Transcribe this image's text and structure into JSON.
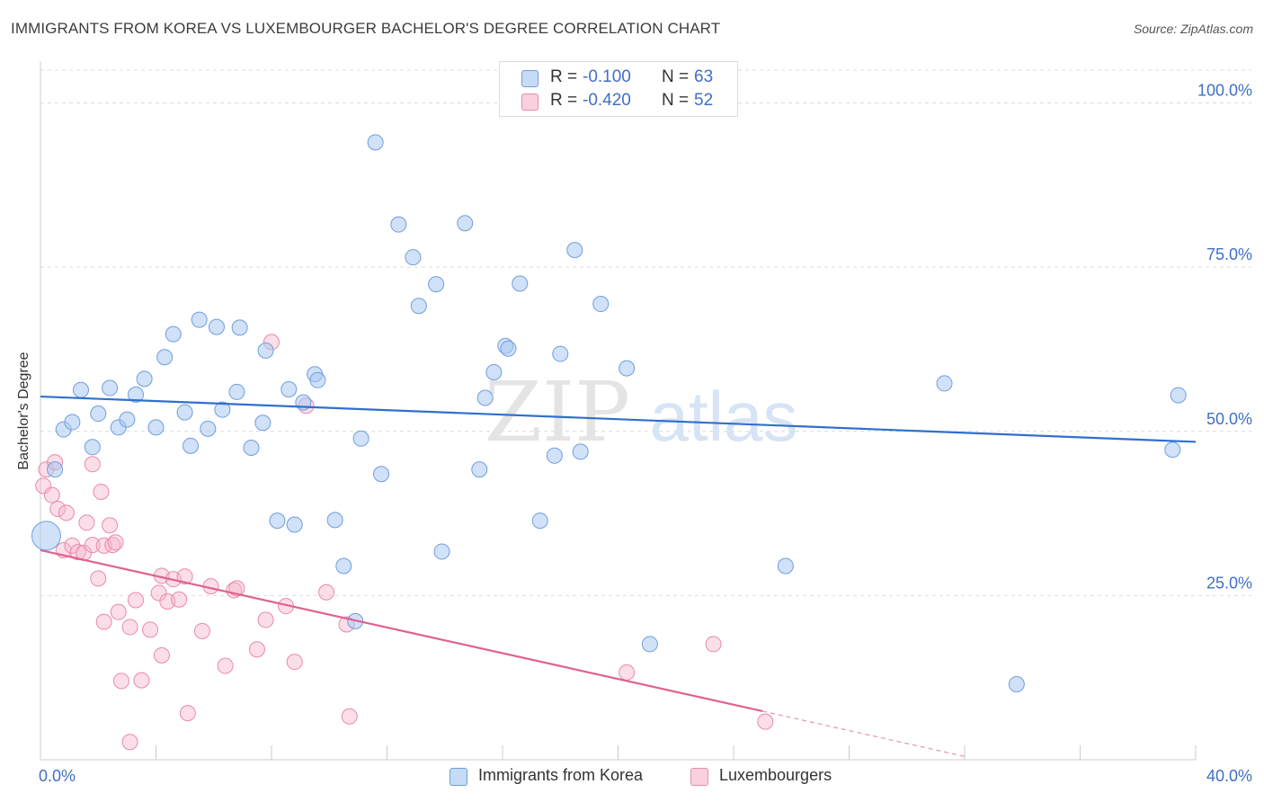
{
  "header": {
    "title": "IMMIGRANTS FROM KOREA VS LUXEMBOURGER BACHELOR'S DEGREE CORRELATION CHART",
    "source": "Source: ZipAtlas.com"
  },
  "watermark": {
    "zip": "ZIP",
    "atlas": "atlas"
  },
  "legend": {
    "rows": [
      {
        "r_label": "R =",
        "r_value": "-0.100",
        "n_label": "N =",
        "n_value": "63",
        "color": "#a9c8f2"
      },
      {
        "r_label": "R =",
        "r_value": "-0.420",
        "n_label": "N =",
        "n_value": "52",
        "color": "#f6b6cb"
      }
    ]
  },
  "bottom_legend": {
    "korea": "Immigrants from Korea",
    "lux": "Luxembourgers"
  },
  "colors": {
    "korea_fill": "#a9c8f2",
    "korea_stroke": "#6f9fdd",
    "korea_line": "#2f6fce",
    "lux_fill": "#f6b6cb",
    "lux_stroke": "#e98aa9",
    "lux_line": "#e06190",
    "axis_label": "#3f6fc7",
    "grid": "#dcdcdc"
  },
  "chart_data": {
    "type": "scatter",
    "title": "IMMIGRANTS FROM KOREA VS LUXEMBOURGER BACHELOR'S DEGREE CORRELATION CHART",
    "xlabel": "",
    "ylabel": "Bachelor's Degree",
    "xlim": [
      0,
      40
    ],
    "ylim": [
      0,
      105
    ],
    "x_tick_labels": [
      "0.0%",
      "40.0%"
    ],
    "y_ticks": [
      25,
      50,
      75,
      100
    ],
    "y_tick_labels": [
      "25.0%",
      "50.0%",
      "75.0%",
      "100.0%"
    ],
    "grid": "horizontal dashed",
    "legend_position": "top-center",
    "series": [
      {
        "name": "Immigrants from Korea",
        "r": -0.1,
        "n": 63,
        "trend": {
          "x": [
            0,
            40
          ],
          "y": [
            55.3,
            48.4
          ]
        },
        "points": [
          {
            "x": 0.2,
            "y": 34.1,
            "big": true
          },
          {
            "x": 0.5,
            "y": 44.2
          },
          {
            "x": 0.8,
            "y": 50.3
          },
          {
            "x": 1.1,
            "y": 51.4
          },
          {
            "x": 1.4,
            "y": 56.3
          },
          {
            "x": 1.8,
            "y": 47.6
          },
          {
            "x": 2.0,
            "y": 52.7
          },
          {
            "x": 2.4,
            "y": 56.6
          },
          {
            "x": 2.7,
            "y": 50.6
          },
          {
            "x": 3.0,
            "y": 51.8
          },
          {
            "x": 3.3,
            "y": 55.6
          },
          {
            "x": 3.6,
            "y": 58.0
          },
          {
            "x": 4.0,
            "y": 50.6
          },
          {
            "x": 4.3,
            "y": 61.3
          },
          {
            "x": 4.6,
            "y": 64.8
          },
          {
            "x": 5.0,
            "y": 52.9
          },
          {
            "x": 5.2,
            "y": 47.8
          },
          {
            "x": 5.5,
            "y": 67.0
          },
          {
            "x": 5.8,
            "y": 50.4
          },
          {
            "x": 6.1,
            "y": 65.9
          },
          {
            "x": 6.3,
            "y": 53.3
          },
          {
            "x": 6.8,
            "y": 56.0
          },
          {
            "x": 6.9,
            "y": 65.8
          },
          {
            "x": 7.3,
            "y": 47.5
          },
          {
            "x": 7.7,
            "y": 51.3
          },
          {
            "x": 7.8,
            "y": 62.3
          },
          {
            "x": 8.2,
            "y": 36.4
          },
          {
            "x": 8.6,
            "y": 56.4
          },
          {
            "x": 8.8,
            "y": 35.8
          },
          {
            "x": 9.1,
            "y": 54.4
          },
          {
            "x": 9.5,
            "y": 58.7
          },
          {
            "x": 9.6,
            "y": 57.8
          },
          {
            "x": 10.2,
            "y": 36.5
          },
          {
            "x": 10.5,
            "y": 29.5
          },
          {
            "x": 10.9,
            "y": 21.1
          },
          {
            "x": 11.1,
            "y": 48.9
          },
          {
            "x": 11.6,
            "y": 94.0
          },
          {
            "x": 11.8,
            "y": 43.5
          },
          {
            "x": 12.4,
            "y": 81.5
          },
          {
            "x": 12.9,
            "y": 76.5
          },
          {
            "x": 13.1,
            "y": 69.1
          },
          {
            "x": 13.7,
            "y": 72.4
          },
          {
            "x": 13.9,
            "y": 31.7
          },
          {
            "x": 14.7,
            "y": 81.7
          },
          {
            "x": 15.2,
            "y": 44.2
          },
          {
            "x": 15.4,
            "y": 55.1
          },
          {
            "x": 15.7,
            "y": 59.0
          },
          {
            "x": 16.1,
            "y": 63.0
          },
          {
            "x": 16.2,
            "y": 62.6
          },
          {
            "x": 16.6,
            "y": 72.5
          },
          {
            "x": 17.3,
            "y": 36.4
          },
          {
            "x": 17.8,
            "y": 46.3
          },
          {
            "x": 18.0,
            "y": 61.8
          },
          {
            "x": 18.5,
            "y": 77.6
          },
          {
            "x": 18.7,
            "y": 46.9
          },
          {
            "x": 19.4,
            "y": 69.4
          },
          {
            "x": 20.3,
            "y": 59.6
          },
          {
            "x": 21.1,
            "y": 17.6
          },
          {
            "x": 25.8,
            "y": 29.5
          },
          {
            "x": 31.3,
            "y": 57.3
          },
          {
            "x": 33.8,
            "y": 11.5
          },
          {
            "x": 39.2,
            "y": 47.2
          },
          {
            "x": 39.4,
            "y": 55.5
          }
        ]
      },
      {
        "name": "Luxembourgers",
        "r": -0.42,
        "n": 52,
        "trend": {
          "x": [
            0,
            25.0
          ],
          "y": [
            31.9,
            7.4
          ]
        },
        "trend_dashed": {
          "x": [
            25.0,
            32.0
          ],
          "y": [
            7.4,
            0.5
          ]
        },
        "points": [
          {
            "x": 0.1,
            "y": 41.7
          },
          {
            "x": 0.2,
            "y": 44.2
          },
          {
            "x": 0.4,
            "y": 40.3
          },
          {
            "x": 0.5,
            "y": 45.3
          },
          {
            "x": 0.6,
            "y": 38.2
          },
          {
            "x": 0.8,
            "y": 31.9
          },
          {
            "x": 0.9,
            "y": 37.6
          },
          {
            "x": 1.1,
            "y": 32.6
          },
          {
            "x": 1.3,
            "y": 31.6
          },
          {
            "x": 1.5,
            "y": 31.5
          },
          {
            "x": 1.6,
            "y": 36.1
          },
          {
            "x": 1.8,
            "y": 32.7
          },
          {
            "x": 1.8,
            "y": 45.0
          },
          {
            "x": 2.0,
            "y": 27.6
          },
          {
            "x": 2.1,
            "y": 40.8
          },
          {
            "x": 2.2,
            "y": 21.0
          },
          {
            "x": 2.2,
            "y": 32.6
          },
          {
            "x": 2.4,
            "y": 35.7
          },
          {
            "x": 2.5,
            "y": 32.7
          },
          {
            "x": 2.6,
            "y": 33.1
          },
          {
            "x": 2.7,
            "y": 22.5
          },
          {
            "x": 2.8,
            "y": 12.0
          },
          {
            "x": 3.1,
            "y": 20.2
          },
          {
            "x": 3.1,
            "y": 2.7
          },
          {
            "x": 3.3,
            "y": 24.3
          },
          {
            "x": 3.5,
            "y": 12.1
          },
          {
            "x": 3.8,
            "y": 19.8
          },
          {
            "x": 4.1,
            "y": 25.4
          },
          {
            "x": 4.2,
            "y": 28.0
          },
          {
            "x": 4.2,
            "y": 15.9
          },
          {
            "x": 4.4,
            "y": 24.1
          },
          {
            "x": 4.6,
            "y": 27.5
          },
          {
            "x": 4.8,
            "y": 24.4
          },
          {
            "x": 5.0,
            "y": 27.9
          },
          {
            "x": 5.1,
            "y": 7.1
          },
          {
            "x": 5.6,
            "y": 19.6
          },
          {
            "x": 5.9,
            "y": 26.4
          },
          {
            "x": 6.4,
            "y": 14.3
          },
          {
            "x": 6.7,
            "y": 25.8
          },
          {
            "x": 6.8,
            "y": 26.1
          },
          {
            "x": 7.5,
            "y": 16.8
          },
          {
            "x": 7.8,
            "y": 21.3
          },
          {
            "x": 8.0,
            "y": 63.6
          },
          {
            "x": 8.5,
            "y": 23.4
          },
          {
            "x": 8.8,
            "y": 14.9
          },
          {
            "x": 9.2,
            "y": 53.9
          },
          {
            "x": 9.9,
            "y": 25.5
          },
          {
            "x": 10.6,
            "y": 20.6
          },
          {
            "x": 10.7,
            "y": 6.6
          },
          {
            "x": 20.3,
            "y": 13.3
          },
          {
            "x": 23.3,
            "y": 17.6
          },
          {
            "x": 25.1,
            "y": 5.8
          }
        ]
      }
    ]
  }
}
